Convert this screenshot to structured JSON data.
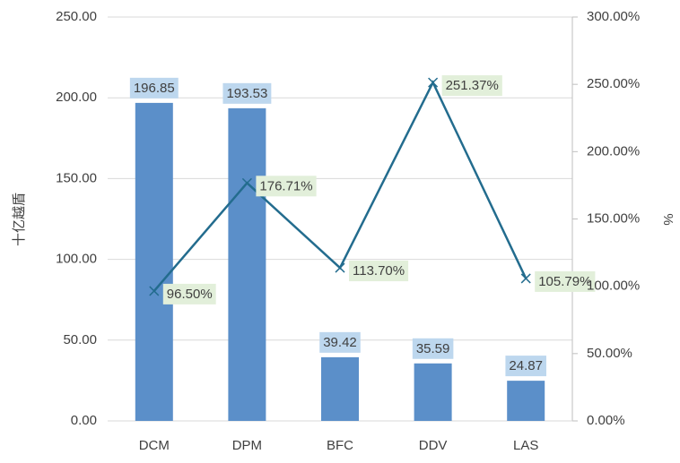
{
  "chart_data": {
    "type": "bar",
    "categories": [
      "DCM",
      "DPM",
      "BFC",
      "DDV",
      "LAS"
    ],
    "series": [
      {
        "type": "bar",
        "color": "#5b8fc9",
        "values": [
          196.85,
          193.53,
          39.42,
          35.59,
          24.87
        ]
      },
      {
        "type": "line",
        "axis": "y2",
        "color": "#236c8e",
        "values": [
          96.5,
          176.71,
          113.7,
          251.37,
          105.79
        ],
        "value_labels": [
          "96.50%",
          "176.71%",
          "113.70%",
          "251.37%",
          "105.79%"
        ]
      }
    ],
    "ylabel": "十亿越盾",
    "y2label": "%",
    "ylim": [
      0,
      250
    ],
    "yticks": [
      {
        "value": 0,
        "label": "0.00"
      },
      {
        "value": 50,
        "label": "50.00"
      },
      {
        "value": 100,
        "label": "100.00"
      },
      {
        "value": 150,
        "label": "150.00"
      },
      {
        "value": 200,
        "label": "200.00"
      },
      {
        "value": 250,
        "label": "250.00"
      }
    ],
    "y2lim": [
      0,
      300
    ],
    "y2ticks": [
      {
        "value": 0,
        "label": "0.00%"
      },
      {
        "value": 50,
        "label": "50.00%"
      },
      {
        "value": 100,
        "label": "100.00%"
      },
      {
        "value": 150,
        "label": "150.00%"
      },
      {
        "value": 200,
        "label": "200.00%"
      },
      {
        "value": 250,
        "label": "250.00%"
      },
      {
        "value": 300,
        "label": "300.00%"
      }
    ],
    "grid": true
  }
}
